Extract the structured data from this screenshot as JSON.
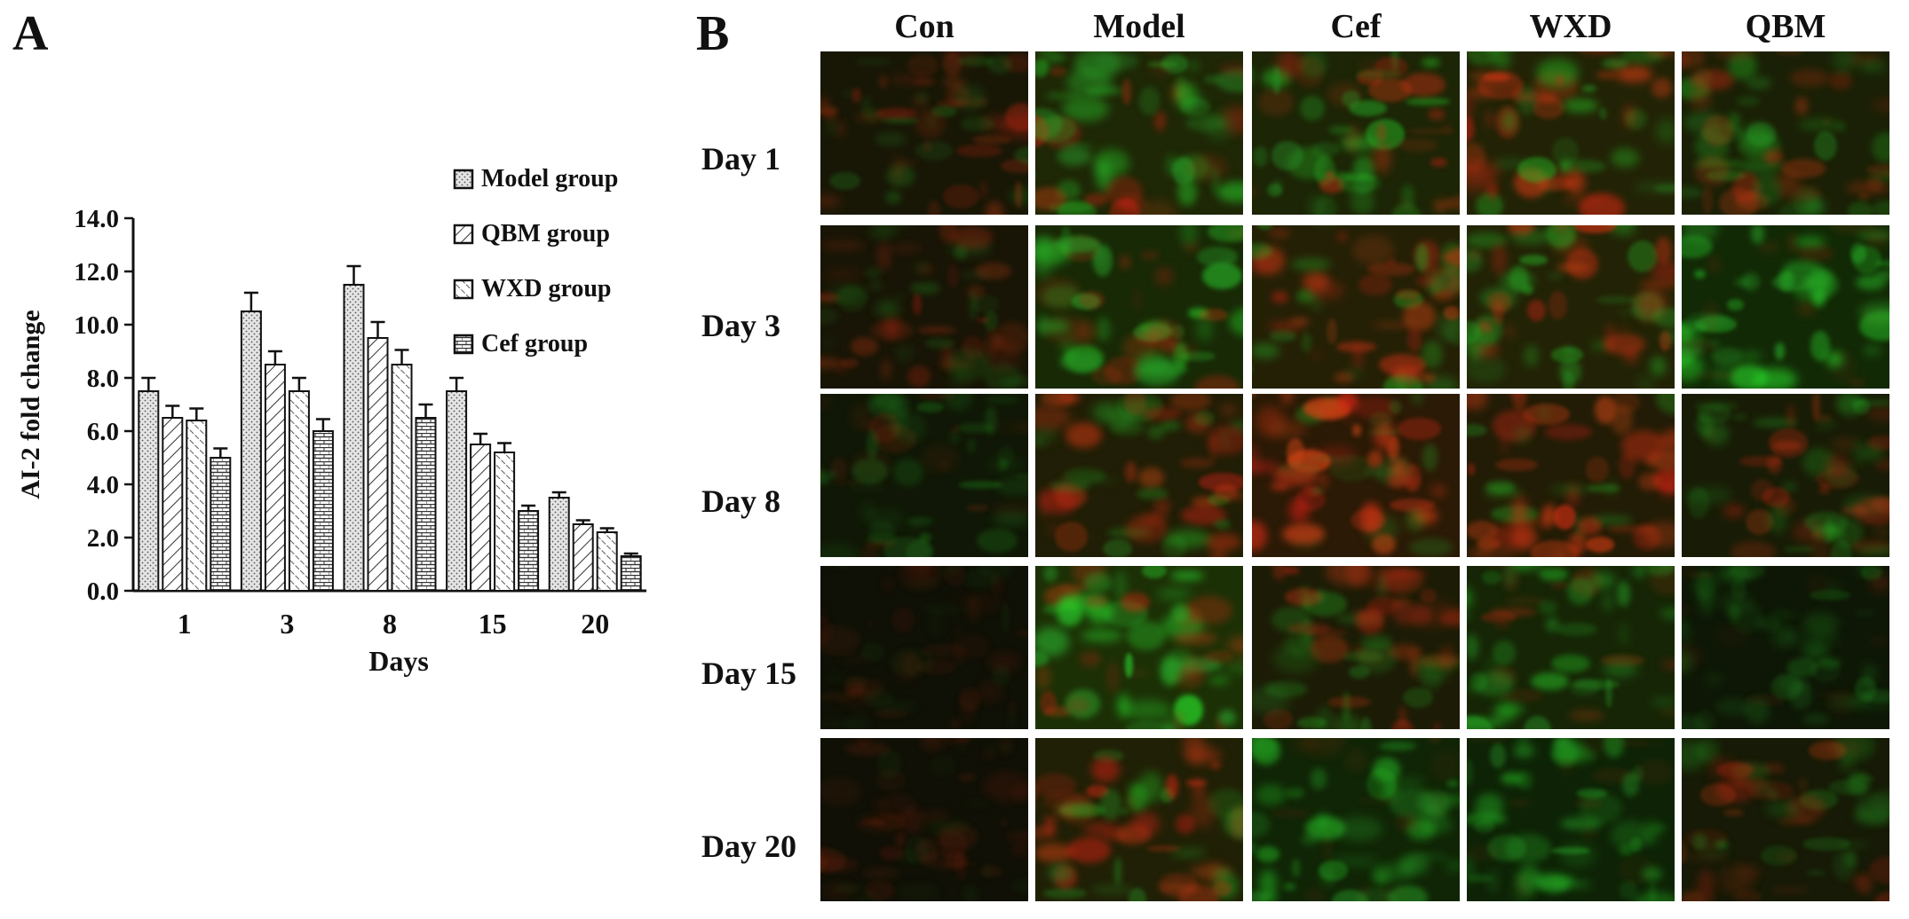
{
  "panels": {
    "a_label": "A",
    "b_label": "B"
  },
  "chart_data": {
    "type": "bar",
    "title": "",
    "xlabel": "Days",
    "ylabel": "AI-2 fold change",
    "categories": [
      "1",
      "3",
      "8",
      "15",
      "20"
    ],
    "ylim": [
      0,
      14
    ],
    "yticks": [
      "0.0",
      "2.0",
      "4.0",
      "6.0",
      "8.0",
      "10.0",
      "12.0",
      "14.0"
    ],
    "grid": false,
    "legend_placement": "top-right",
    "series": [
      {
        "name": "Model group",
        "pattern": "dots",
        "values": [
          7.5,
          10.5,
          11.5,
          7.5,
          3.5
        ],
        "errors": [
          0.5,
          0.7,
          0.7,
          0.5,
          0.2
        ]
      },
      {
        "name": "QBM group",
        "pattern": "hatch-right",
        "values": [
          6.5,
          8.5,
          9.5,
          5.5,
          2.5
        ],
        "errors": [
          0.45,
          0.5,
          0.6,
          0.4,
          0.15
        ]
      },
      {
        "name": "WXD group",
        "pattern": "hatch-left",
        "values": [
          6.4,
          7.5,
          8.5,
          5.2,
          2.2
        ],
        "errors": [
          0.45,
          0.5,
          0.55,
          0.35,
          0.15
        ]
      },
      {
        "name": "Cef group",
        "pattern": "bricks",
        "values": [
          5.0,
          6.0,
          6.5,
          3.0,
          1.3
        ],
        "errors": [
          0.35,
          0.45,
          0.5,
          0.2,
          0.1
        ]
      }
    ]
  },
  "grid_panel": {
    "columns": [
      "Con",
      "Model",
      "Cef",
      "WXD",
      "QBM"
    ],
    "rows": [
      "Day 1",
      "Day 3",
      "Day 8",
      "Day 15",
      "Day 20"
    ]
  }
}
